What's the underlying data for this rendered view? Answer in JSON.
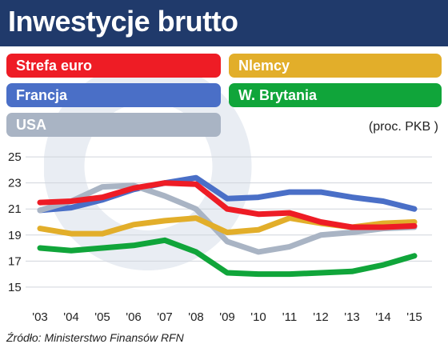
{
  "title": "Inwestycje brutto",
  "unit": "(proc. PKB )",
  "source": "Źródło: Ministerstwo Finansów RFN",
  "legend": [
    {
      "label": "Strefa euro",
      "color": "#ee1c25"
    },
    {
      "label": "Nlemcy",
      "color": "#e2ae2a"
    },
    {
      "label": "Francja",
      "color": "#4a6fc7"
    },
    {
      "label": "W. Brytania",
      "color": "#10a53a"
    },
    {
      "label": "USA",
      "color": "#a9b4c4"
    }
  ],
  "chart_data": {
    "type": "line",
    "title": "Inwestycje brutto",
    "xlabel": "",
    "ylabel": "(proc. PKB )",
    "categories": [
      "'03",
      "'04",
      "'05",
      "'06",
      "'07",
      "'08",
      "'09",
      "'10",
      "'11",
      "'12",
      "'13",
      "'14",
      "'15"
    ],
    "y_ticks": [
      15,
      17,
      19,
      21,
      23,
      25
    ],
    "ylim": [
      14.5,
      25.5
    ],
    "grid": "horizontal",
    "series": [
      {
        "name": "Francja",
        "color": "#4a6fc7",
        "values": [
          20.9,
          21.1,
          21.7,
          22.5,
          23.0,
          23.4,
          21.8,
          21.9,
          22.3,
          22.3,
          21.9,
          21.6,
          21.0
        ]
      },
      {
        "name": "USA",
        "color": "#a9b4c4",
        "values": [
          20.9,
          21.6,
          22.7,
          22.8,
          22.0,
          21.0,
          18.5,
          17.7,
          18.1,
          19.0,
          19.2,
          19.5,
          19.6
        ]
      },
      {
        "name": "Nlemcy",
        "color": "#e2ae2a",
        "values": [
          19.5,
          19.1,
          19.1,
          19.8,
          20.1,
          20.3,
          19.2,
          19.4,
          20.3,
          19.9,
          19.6,
          19.9,
          20.0
        ]
      },
      {
        "name": "W. Brytania",
        "color": "#10a53a",
        "values": [
          18.0,
          17.8,
          18.0,
          18.2,
          18.6,
          17.7,
          16.1,
          16.0,
          16.0,
          16.1,
          16.2,
          16.7,
          17.4
        ]
      },
      {
        "name": "Strefa euro",
        "color": "#ee1c25",
        "values": [
          21.5,
          21.6,
          21.9,
          22.6,
          23.0,
          22.9,
          21.0,
          20.6,
          20.7,
          20.0,
          19.6,
          19.6,
          19.7
        ]
      }
    ]
  }
}
